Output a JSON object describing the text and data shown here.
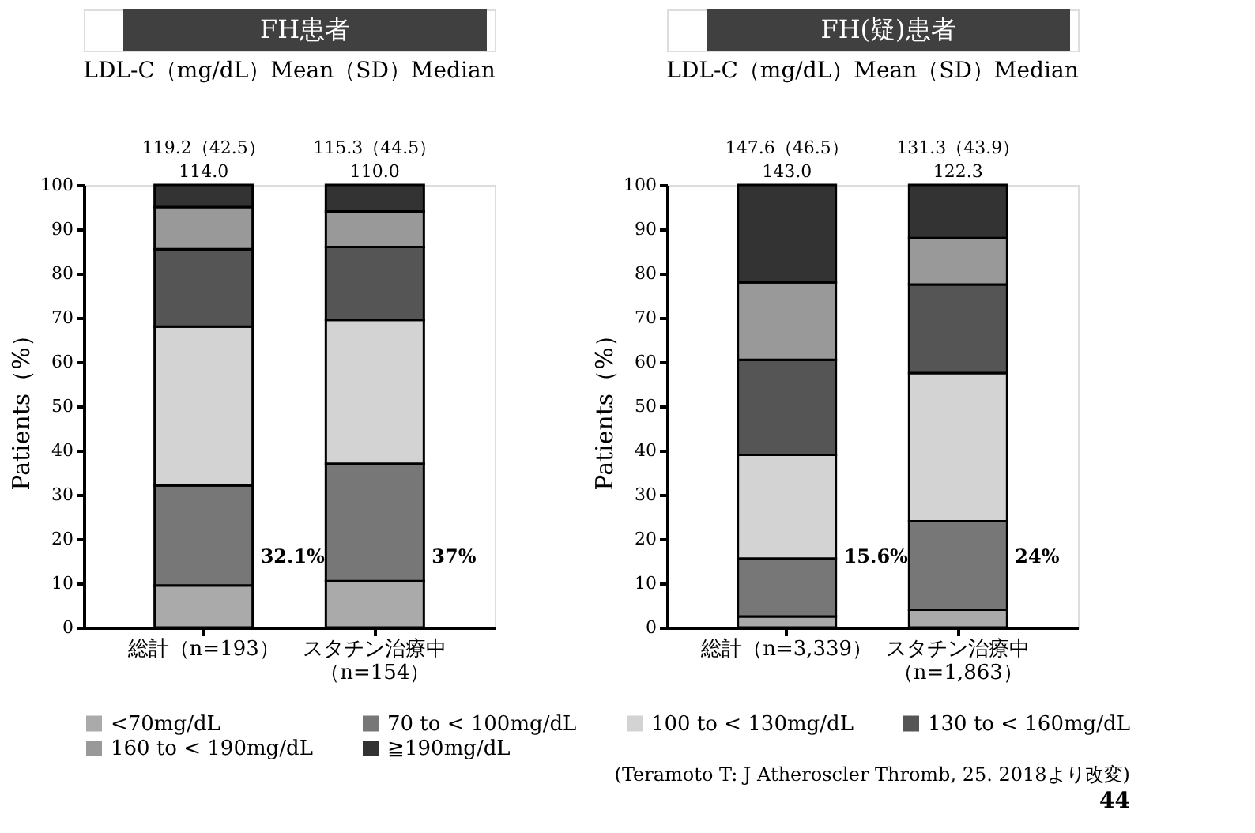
{
  "chart_data": [
    {
      "type": "bar",
      "stacked": true,
      "title": "FH患者",
      "subtitle": "LDL-C（mg/dL）Mean（SD）Median",
      "ylabel": "Patients（%）",
      "categories": [
        "総計（n=193）",
        "スタチン治療中（n=154）"
      ],
      "series": [
        {
          "name": "<70mg/dL",
          "color": "#aaaaaa",
          "values": [
            9.5,
            10.5
          ]
        },
        {
          "name": "70 to < 100mg/dL",
          "color": "#777777",
          "values": [
            22.6,
            26.5
          ]
        },
        {
          "name": "100 to < 130mg/dL",
          "color": "#d3d3d3",
          "values": [
            35.9,
            32.5
          ]
        },
        {
          "name": "130 to < 160mg/dL",
          "color": "#555555",
          "values": [
            17.5,
            16.5
          ]
        },
        {
          "name": "160 to < 190mg/dL",
          "color": "#999999",
          "values": [
            9.5,
            8
          ]
        },
        {
          "name": "≧190mg/dL",
          "color": "#333333",
          "values": [
            5,
            6
          ]
        }
      ],
      "ylim": [
        0,
        100
      ],
      "yticks": [
        0,
        10,
        20,
        30,
        40,
        50,
        60,
        70,
        80,
        90,
        100
      ],
      "grid": false,
      "legend": "bottom",
      "annotations": [
        {
          "text": "119.2（42.5）\n114.0",
          "x": "総計（n=193）",
          "y": 100
        },
        {
          "text": "115.3（44.5）\n110.0",
          "x": "スタチン治療中（n=154）",
          "y": 100
        },
        "32.1%",
        "37%"
      ]
    },
    {
      "type": "bar",
      "stacked": true,
      "title": "FH(疑)患者",
      "subtitle": "LDL-C（mg/dL）Mean（SD）Median",
      "ylabel": "Patients（%）",
      "categories": [
        "総計（n=3,339）",
        "スタチン治療中（n=1,863）"
      ],
      "series": [
        {
          "name": "<70mg/dL",
          "color": "#aaaaaa",
          "values": [
            2.5,
            4
          ]
        },
        {
          "name": "70 to < 100mg/dL",
          "color": "#777777",
          "values": [
            13.1,
            20
          ]
        },
        {
          "name": "100 to < 130mg/dL",
          "color": "#d3d3d3",
          "values": [
            23.4,
            33.5
          ]
        },
        {
          "name": "130 to < 160mg/dL",
          "color": "#555555",
          "values": [
            21.5,
            20
          ]
        },
        {
          "name": "160 to < 190mg/dL",
          "color": "#999999",
          "values": [
            17.5,
            10.5
          ]
        },
        {
          "name": "≧190mg/dL",
          "color": "#333333",
          "values": [
            22,
            12
          ]
        }
      ],
      "ylim": [
        0,
        100
      ],
      "yticks": [
        0,
        10,
        20,
        30,
        40,
        50,
        60,
        70,
        80,
        90,
        100
      ],
      "grid": false,
      "legend": "bottom",
      "annotations": [
        {
          "text": "147.6（46.5）\n143.0",
          "x": "総計（n=3,339）",
          "y": 100
        },
        {
          "text": "131.3（43.9）\n122.3",
          "x": "スタチン治療中（n=1,863）",
          "y": 100
        },
        "15.6%",
        "24%",
        "(Teramoto T: J Atheroscler Thromb, 25. 2018より改変)",
        "44"
      ]
    }
  ]
}
